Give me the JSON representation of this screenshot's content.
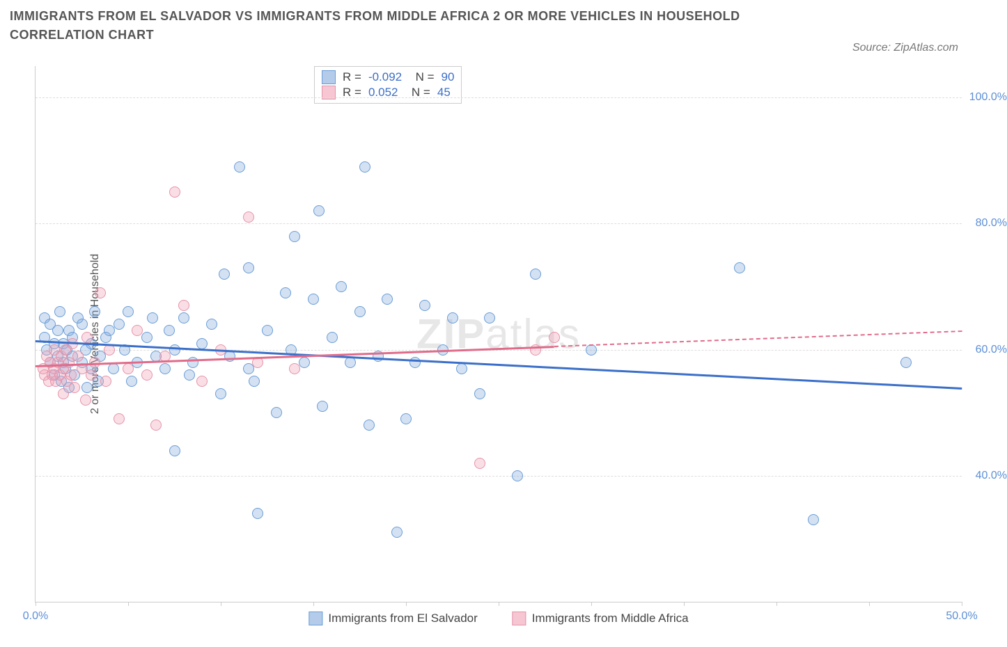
{
  "title": "IMMIGRANTS FROM EL SALVADOR VS IMMIGRANTS FROM MIDDLE AFRICA 2 OR MORE VEHICLES IN HOUSEHOLD CORRELATION CHART",
  "source": "Source: ZipAtlas.com",
  "watermark_bold": "ZIP",
  "watermark_light": "atlas",
  "chart": {
    "type": "scatter",
    "y_axis_title": "2 or more Vehicles in Household",
    "xlim": [
      0,
      50
    ],
    "ylim": [
      20,
      105
    ],
    "x_ticks": [
      0,
      5,
      10,
      15,
      20,
      25,
      30,
      35,
      40,
      45,
      50
    ],
    "x_tick_labels": {
      "0": "0.0%",
      "50": "50.0%"
    },
    "y_ticks": [
      40,
      60,
      80,
      100
    ],
    "y_tick_labels": [
      "40.0%",
      "60.0%",
      "80.0%",
      "100.0%"
    ],
    "background_color": "#ffffff",
    "grid_color": "#dddddd",
    "marker_size": 16,
    "series": [
      {
        "name": "Immigrants from El Salvador",
        "color_fill": "rgba(130,170,220,0.35)",
        "color_border": "#6a9dd6",
        "R": "-0.092",
        "N": "90",
        "points": [
          [
            0.5,
            62
          ],
          [
            0.5,
            65
          ],
          [
            0.6,
            60
          ],
          [
            0.8,
            58
          ],
          [
            0.8,
            64
          ],
          [
            1.0,
            56
          ],
          [
            1.0,
            61
          ],
          [
            1.2,
            59
          ],
          [
            1.2,
            63
          ],
          [
            1.3,
            66
          ],
          [
            1.4,
            55
          ],
          [
            1.5,
            58
          ],
          [
            1.5,
            61
          ],
          [
            1.6,
            57
          ],
          [
            1.7,
            60
          ],
          [
            1.8,
            54
          ],
          [
            1.8,
            63
          ],
          [
            2.0,
            59
          ],
          [
            2.0,
            62
          ],
          [
            2.1,
            56
          ],
          [
            2.3,
            65
          ],
          [
            2.5,
            58
          ],
          [
            2.5,
            64
          ],
          [
            2.7,
            60
          ],
          [
            2.8,
            54
          ],
          [
            3.0,
            57
          ],
          [
            3.0,
            61
          ],
          [
            3.2,
            66
          ],
          [
            3.4,
            55
          ],
          [
            3.5,
            59
          ],
          [
            3.8,
            62
          ],
          [
            4.0,
            63
          ],
          [
            4.2,
            57
          ],
          [
            4.5,
            64
          ],
          [
            4.8,
            60
          ],
          [
            5.0,
            66
          ],
          [
            5.2,
            55
          ],
          [
            5.5,
            58
          ],
          [
            6.0,
            62
          ],
          [
            6.3,
            65
          ],
          [
            6.5,
            59
          ],
          [
            7.0,
            57
          ],
          [
            7.2,
            63
          ],
          [
            7.5,
            44
          ],
          [
            7.5,
            60
          ],
          [
            8.0,
            65
          ],
          [
            8.3,
            56
          ],
          [
            8.5,
            58
          ],
          [
            9.0,
            61
          ],
          [
            9.5,
            64
          ],
          [
            10.0,
            53
          ],
          [
            10.2,
            72
          ],
          [
            10.5,
            59
          ],
          [
            11.0,
            89
          ],
          [
            11.5,
            73
          ],
          [
            11.5,
            57
          ],
          [
            11.8,
            55
          ],
          [
            12.0,
            34
          ],
          [
            12.5,
            63
          ],
          [
            13.0,
            50
          ],
          [
            13.5,
            69
          ],
          [
            13.8,
            60
          ],
          [
            14.0,
            78
          ],
          [
            14.5,
            58
          ],
          [
            15.0,
            68
          ],
          [
            15.3,
            82
          ],
          [
            15.5,
            51
          ],
          [
            16.0,
            62
          ],
          [
            16.5,
            70
          ],
          [
            17.0,
            58
          ],
          [
            17.5,
            66
          ],
          [
            17.8,
            89
          ],
          [
            18.0,
            48
          ],
          [
            18.5,
            59
          ],
          [
            19.0,
            68
          ],
          [
            19.5,
            31
          ],
          [
            20.0,
            49
          ],
          [
            20.5,
            58
          ],
          [
            21.0,
            67
          ],
          [
            22.0,
            60
          ],
          [
            22.5,
            65
          ],
          [
            23.0,
            57
          ],
          [
            24.0,
            53
          ],
          [
            24.5,
            65
          ],
          [
            26.0,
            40
          ],
          [
            27.0,
            72
          ],
          [
            30.0,
            60
          ],
          [
            38.0,
            73
          ],
          [
            42.0,
            33
          ],
          [
            47.0,
            58
          ]
        ],
        "trend": {
          "y_at_x0": 61.5,
          "y_at_xmax": 54.0,
          "color": "#3b6fc9"
        }
      },
      {
        "name": "Immigrants from Middle Africa",
        "color_fill": "rgba(240,160,180,0.35)",
        "color_border": "#e593aa",
        "R": "0.052",
        "N": "45",
        "points": [
          [
            0.4,
            57
          ],
          [
            0.5,
            56
          ],
          [
            0.6,
            59
          ],
          [
            0.7,
            55
          ],
          [
            0.8,
            58
          ],
          [
            0.9,
            56
          ],
          [
            1.0,
            57
          ],
          [
            1.0,
            60
          ],
          [
            1.1,
            55
          ],
          [
            1.2,
            58
          ],
          [
            1.3,
            56
          ],
          [
            1.4,
            59
          ],
          [
            1.5,
            57
          ],
          [
            1.5,
            53
          ],
          [
            1.6,
            60
          ],
          [
            1.7,
            55
          ],
          [
            1.8,
            58
          ],
          [
            1.9,
            56
          ],
          [
            2.0,
            61
          ],
          [
            2.1,
            54
          ],
          [
            2.3,
            59
          ],
          [
            2.5,
            57
          ],
          [
            2.7,
            52
          ],
          [
            2.8,
            62
          ],
          [
            3.0,
            56
          ],
          [
            3.2,
            58
          ],
          [
            3.5,
            69
          ],
          [
            3.8,
            55
          ],
          [
            4.0,
            60
          ],
          [
            4.5,
            49
          ],
          [
            5.0,
            57
          ],
          [
            5.5,
            63
          ],
          [
            6.0,
            56
          ],
          [
            6.5,
            48
          ],
          [
            7.0,
            59
          ],
          [
            7.5,
            85
          ],
          [
            8.0,
            67
          ],
          [
            9.0,
            55
          ],
          [
            10.0,
            60
          ],
          [
            11.5,
            81
          ],
          [
            12.0,
            58
          ],
          [
            14.0,
            57
          ],
          [
            24.0,
            42
          ],
          [
            27.0,
            60
          ],
          [
            28.0,
            62
          ]
        ],
        "trend": {
          "y_at_x0": 57.5,
          "y_at_xmax": 63.0,
          "x_solid_end": 28,
          "color": "#e06b8a"
        }
      }
    ]
  }
}
